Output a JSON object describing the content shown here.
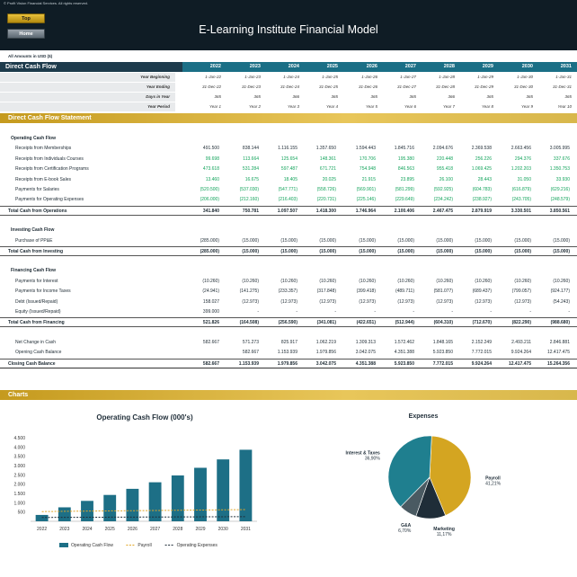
{
  "app": {
    "copyright": "© Profit Vision Financial Services. All rights reserved.",
    "title": "E-Learning Institute Financial Model",
    "nav": {
      "top_label": "Top",
      "home_label": "Home"
    },
    "units_note": "All Amounts in  USD ($)"
  },
  "header": {
    "sheet_label": "Direct Cash Flow",
    "years": [
      "2022",
      "2023",
      "2024",
      "2025",
      "2026",
      "2027",
      "2028",
      "2029",
      "2030",
      "2031"
    ]
  },
  "meta_rows": [
    {
      "label": "Year Beginning",
      "values": [
        "1-Jan-22",
        "1-Jan-23",
        "1-Jan-24",
        "1-Jan-25",
        "1-Jan-26",
        "1-Jan-27",
        "1-Jan-28",
        "1-Jan-29",
        "1-Jan-30",
        "1-Jan-31"
      ]
    },
    {
      "label": "Year Ending",
      "values": [
        "31-Dec-22",
        "31-Dec-23",
        "31-Dec-24",
        "31-Dec-25",
        "31-Dec-26",
        "31-Dec-27",
        "31-Dec-28",
        "31-Dec-29",
        "31-Dec-30",
        "31-Dec-31"
      ]
    },
    {
      "label": "Days in Year",
      "values": [
        "365",
        "365",
        "366",
        "365",
        "365",
        "365",
        "366",
        "365",
        "365",
        "365"
      ]
    },
    {
      "label": "Year Period",
      "values": [
        "Year 1",
        "Year 2",
        "Year 3",
        "Year 4",
        "Year 5",
        "Year 6",
        "Year 7",
        "Year 8",
        "Year 9",
        "Year 10"
      ]
    }
  ],
  "sections": {
    "statement": "Direct Cash Flow Statement",
    "charts": "Charts"
  },
  "rows": [
    {
      "type": "sec",
      "label": "Operating Cash Flow"
    },
    {
      "type": "item",
      "label": "Receipts from Memberships",
      "color": "blk",
      "values": [
        "491.500",
        "838.144",
        "1.116.155",
        "1.357.650",
        "1.594.443",
        "1.845.716",
        "2.094.676",
        "2.369.538",
        "2.663.456",
        "3.005.995"
      ]
    },
    {
      "type": "item",
      "label": "Receipts from Individuals Courses",
      "color": "grn",
      "values": [
        "99.698",
        "113.664",
        "125.654",
        "148.361",
        "170.706",
        "195.380",
        "220.448",
        "256.226",
        "294.376",
        "337.676"
      ]
    },
    {
      "type": "item",
      "label": "Receipts from Certification Programs",
      "color": "grn",
      "values": [
        "473.618",
        "531.284",
        "597.487",
        "671.721",
        "754.948",
        "846.563",
        "955.418",
        "1.069.425",
        "1.202.203",
        "1.350.753"
      ]
    },
    {
      "type": "item",
      "label": "Receipts from E-book Sales",
      "color": "grn",
      "values": [
        "13.460",
        "16.675",
        "18.405",
        "20.025",
        "21.915",
        "23.895",
        "26.100",
        "28.443",
        "31.050",
        "33.930"
      ]
    },
    {
      "type": "item",
      "label": "Payments for Salaries",
      "color": "grn",
      "values": [
        "(520.500)",
        "(537.030)",
        "(547.771)",
        "(558.726)",
        "(569.901)",
        "(581.299)",
        "(592.925)",
        "(604.783)",
        "(616.879)",
        "(629.216)"
      ]
    },
    {
      "type": "item",
      "label": "Payments for Operating Expenses",
      "color": "grn",
      "values": [
        "(206.000)",
        "(212.160)",
        "(216.403)",
        "(220.731)",
        "(225.146)",
        "(229.649)",
        "(234.242)",
        "(238.927)",
        "(243.705)",
        "(248.579)"
      ]
    },
    {
      "type": "total",
      "label": "Total Cash from Operations",
      "values": [
        "341.840",
        "750.781",
        "1.097.507",
        "1.418.300",
        "1.746.964",
        "2.100.406",
        "2.467.475",
        "2.879.919",
        "3.330.501",
        "3.850.561"
      ]
    },
    {
      "type": "gap"
    },
    {
      "type": "sec",
      "label": "Investing Cash Flow"
    },
    {
      "type": "item",
      "label": "Purchase of PP&E",
      "color": "blk",
      "values": [
        "(285.000)",
        "(15.000)",
        "(15.000)",
        "(15.000)",
        "(15.000)",
        "(15.000)",
        "(15.000)",
        "(15.000)",
        "(15.000)",
        "(15.000)"
      ]
    },
    {
      "type": "total",
      "label": "Total Cash from Investing",
      "values": [
        "(285.000)",
        "(15.000)",
        "(15.000)",
        "(15.000)",
        "(15.000)",
        "(15.000)",
        "(15.000)",
        "(15.000)",
        "(15.000)",
        "(15.000)"
      ]
    },
    {
      "type": "gap"
    },
    {
      "type": "sec",
      "label": "Financing Cash Flow"
    },
    {
      "type": "item",
      "label": "Payments for Interest",
      "color": "blk",
      "values": [
        "(10.260)",
        "(10.260)",
        "(10.260)",
        "(10.260)",
        "(10.260)",
        "(10.260)",
        "(10.260)",
        "(10.260)",
        "(10.260)",
        "(10.260)"
      ]
    },
    {
      "type": "item",
      "label": "Payments for Income Taxes",
      "color": "blk",
      "values": [
        "(24.941)",
        "(141.275)",
        "(233.357)",
        "(317.848)",
        "(399.418)",
        "(489.711)",
        "(581.077)",
        "(689.437)",
        "(799.057)",
        "(924.177)"
      ]
    },
    {
      "type": "item",
      "label": "Debt (Issued/Repaid)",
      "color": "blk",
      "values": [
        "158.027",
        "(12.973)",
        "(12.973)",
        "(12.973)",
        "(12.973)",
        "(12.973)",
        "(12.973)",
        "(12.973)",
        "(12.973)",
        "(54.243)"
      ]
    },
    {
      "type": "item",
      "label": "Equity (Issued/Repaid)",
      "color": "blk",
      "values": [
        "399.000",
        "-",
        "-",
        "-",
        "-",
        "-",
        "-",
        "-",
        "-",
        "-"
      ]
    },
    {
      "type": "total",
      "label": "Total Cash from Financing",
      "values": [
        "521.826",
        "(164.508)",
        "(256.590)",
        "(341.081)",
        "(422.651)",
        "(512.944)",
        "(604.310)",
        "(712.670)",
        "(822.290)",
        "(988.680)"
      ]
    },
    {
      "type": "gap"
    },
    {
      "type": "item",
      "label": "Net Change in Cash",
      "color": "blk",
      "values": [
        "582.667",
        "571.273",
        "825.917",
        "1.062.219",
        "1.309.313",
        "1.572.462",
        "1.848.165",
        "2.152.249",
        "2.493.211",
        "2.846.881"
      ]
    },
    {
      "type": "item",
      "label": "Opening Cash Balance",
      "color": "blk",
      "values": [
        "",
        "582.667",
        "1.153.939",
        "1.979.856",
        "3.042.075",
        "4.351.388",
        "5.923.850",
        "7.772.015",
        "9.924.264",
        "12.417.475"
      ]
    },
    {
      "type": "closing",
      "label": "Closing Cash Balance",
      "values": [
        "582.667",
        "1.153.939",
        "1.979.856",
        "3.042.075",
        "4.351.388",
        "5.923.850",
        "7.772.015",
        "9.924.264",
        "12.417.475",
        "15.264.356"
      ]
    }
  ],
  "chart_data": [
    {
      "type": "bar",
      "title": "Operating Cash Flow (000's)",
      "categories": [
        "2022",
        "2023",
        "2024",
        "2025",
        "2026",
        "2027",
        "2028",
        "2029",
        "2030",
        "2031"
      ],
      "ylim": [
        0,
        4500
      ],
      "yticks": [
        500,
        1000,
        1500,
        2000,
        2500,
        3000,
        3500,
        4000,
        4500
      ],
      "ytick_labels": [
        "500",
        "1.000",
        "1.500",
        "2.000",
        "2.500",
        "3.000",
        "3.500",
        "4.000",
        "4.500"
      ],
      "series": [
        {
          "name": "Operating Cash Flow",
          "kind": "bar",
          "color": "#1d6f86",
          "values": [
            342,
            751,
            1098,
            1418,
            1747,
            2100,
            2467,
            2880,
            3331,
            3851
          ]
        },
        {
          "name": "Payroll",
          "kind": "line-dashed",
          "color": "#e2a626",
          "values": [
            521,
            537,
            548,
            559,
            570,
            581,
            593,
            605,
            617,
            629
          ]
        },
        {
          "name": "Operating Expenses",
          "kind": "line-dashed",
          "color": "#1f2d38",
          "values": [
            206,
            212,
            216,
            221,
            225,
            230,
            234,
            239,
            244,
            249
          ]
        }
      ],
      "legend": "bottom"
    },
    {
      "type": "pie",
      "title": "Expenses",
      "slices": [
        {
          "label": "Payroll",
          "pct": "41,21%",
          "value": 41.21,
          "color": "#d4a521"
        },
        {
          "label": "Marketing",
          "pct": "11,17%",
          "value": 11.17,
          "color": "#1f2d38"
        },
        {
          "label": "G&A",
          "pct": "6,70%",
          "value": 6.7,
          "color": "#4a5a62"
        },
        {
          "label": "Interest & Taxes",
          "pct": "36,90%",
          "value": 36.9,
          "color": "#1f7f8f"
        }
      ]
    }
  ]
}
